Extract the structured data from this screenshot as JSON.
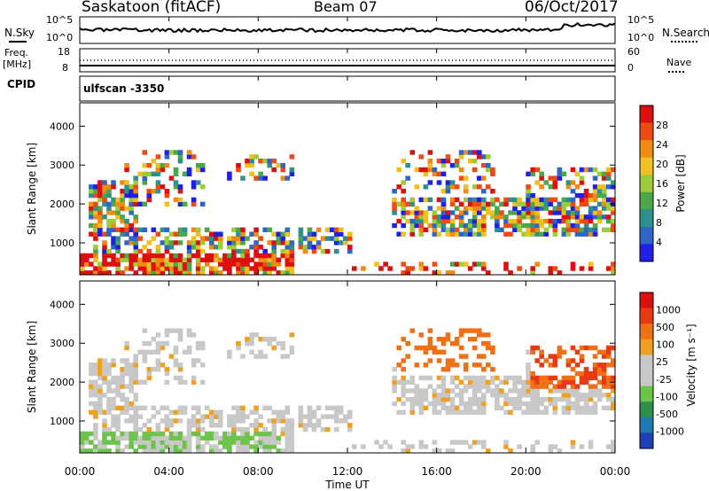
{
  "header": {
    "station": "Saskatoon (fitACF)",
    "beam": "Beam 07",
    "date": "06/Oct/2017"
  },
  "top_panels": {
    "nsky_label": "N.Sky",
    "nsky_ticks": [
      "10^5",
      "10^0"
    ],
    "nsearch_label": "N.Search",
    "nsearch_ticks": [
      "10^5",
      "10^0"
    ],
    "freq_label_1": "Freq.",
    "freq_label_2": "[MHz]",
    "freq_ticks": [
      "18",
      "8"
    ],
    "nave_label": "Nave",
    "nave_ticks": [
      "60",
      "0"
    ],
    "cpid_label": "CPID",
    "cpid_value": "ulfscan -3350"
  },
  "x_axis": {
    "ticks": [
      "00:00",
      "04:00",
      "08:00",
      "12:00",
      "16:00",
      "20:00",
      "00:00"
    ],
    "label": "Time UT"
  },
  "chart_data": [
    {
      "type": "heatmap",
      "name": "power",
      "ylabel": "Slant Range [km]",
      "ylim": [
        180,
        4600
      ],
      "yticks": [
        1000,
        2000,
        3000,
        4000
      ],
      "xlim": [
        0,
        24
      ],
      "colorbar": {
        "label": "Power [dB]",
        "ticks": [
          "28",
          "24",
          "20",
          "16",
          "12",
          "8",
          "4"
        ],
        "range": [
          0,
          32
        ],
        "colors": [
          "#1f1fe8",
          "#2f64c8",
          "#2e8f8f",
          "#4aa84a",
          "#9ccc3a",
          "#f0c020",
          "#f08a10",
          "#ee4a12",
          "#dd1010"
        ]
      }
    },
    {
      "type": "heatmap",
      "name": "velocity",
      "ylabel": "Slant Range [km]",
      "ylim": [
        180,
        4600
      ],
      "yticks": [
        1000,
        2000,
        3000,
        4000
      ],
      "xlim": [
        0,
        24
      ],
      "colorbar": {
        "label": "Velocity [m s⁻¹]",
        "ticks": [
          "1000",
          "500",
          "100",
          "25",
          "-25",
          "-100",
          "-500",
          "-1000"
        ],
        "colors": [
          "#1f3fb5",
          "#1f79b0",
          "#2e8f4a",
          "#6cc44a",
          "#c8c8c8",
          "#c8c8c8",
          "#f0a020",
          "#f07018",
          "#e83a12",
          "#dd1010"
        ]
      }
    }
  ]
}
